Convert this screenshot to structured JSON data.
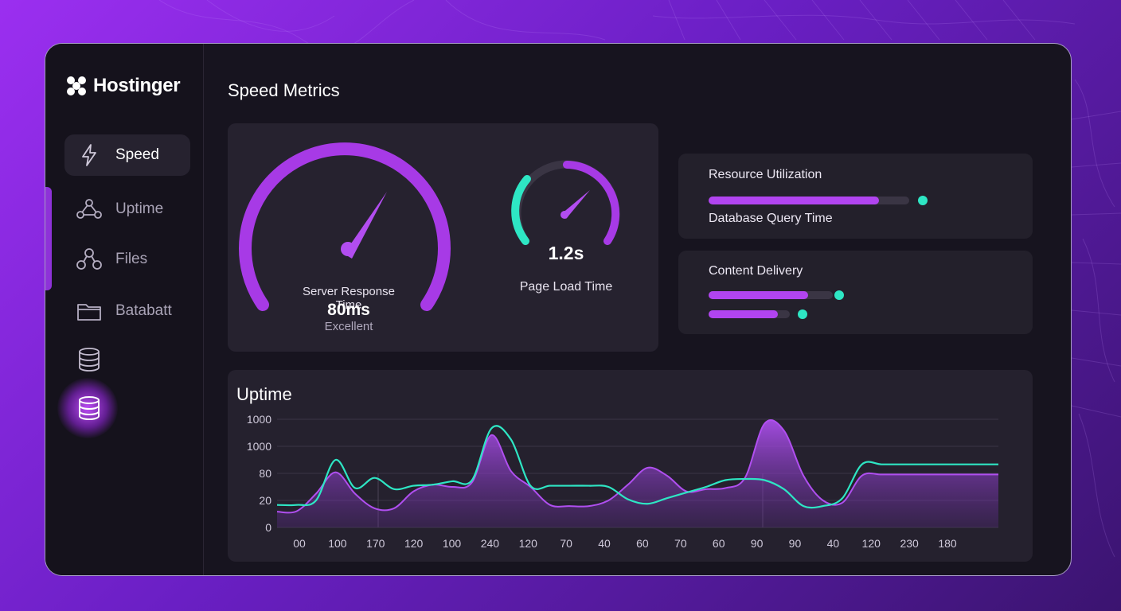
{
  "brand": {
    "name": "Hostinger",
    "logo_icon": "hostinger-logo-icon"
  },
  "sidebar": {
    "items": [
      {
        "label": "Speed",
        "icon": "lightning-icon",
        "active": true
      },
      {
        "label": "Uptime",
        "icon": "network-nodes-icon",
        "active": false
      },
      {
        "label": "Files",
        "icon": "nodes-icon",
        "active": false
      },
      {
        "label": "Batabatt",
        "icon": "folder-icon",
        "active": false
      },
      {
        "label": "",
        "icon": "database-icon",
        "active": false
      },
      {
        "label": "",
        "icon": "database-icon-glowing",
        "active": false
      }
    ]
  },
  "page": {
    "title": "Speed Metrics"
  },
  "gauges": {
    "server_response": {
      "label": "Server Response Time",
      "value": "80ms",
      "status": "Excellent",
      "fill_fraction": 0.9
    },
    "page_load": {
      "label": "Page Load Time",
      "value": "1.2s",
      "fill_fraction": 0.8
    }
  },
  "resource": {
    "title": "Resource Utilization",
    "subtitle": "Database Query Time",
    "bar_fraction": 0.85
  },
  "content_delivery": {
    "title": "Content Delivery",
    "bars": [
      0.8,
      0.85
    ]
  },
  "colors": {
    "accent_purple": "#b144f0",
    "accent_teal": "#2ee6c4",
    "panel": "#23202b"
  },
  "uptime": {
    "title": "Uptime"
  },
  "chart_data": {
    "type": "area",
    "title": "Uptime",
    "y_ticks": [
      "0",
      "20",
      "80",
      "1000",
      "1000"
    ],
    "x_ticks": [
      "00",
      "100",
      "170",
      "120",
      "100",
      "240",
      "120",
      "70",
      "40",
      "60",
      "70",
      "60",
      "90",
      "90",
      "40",
      "120",
      "230",
      "180"
    ],
    "y_tick_levels": [
      0,
      1,
      2,
      3,
      4
    ],
    "x": [
      0,
      0.5,
      1,
      1.5,
      2,
      2.5,
      3,
      3.5,
      4,
      4.5,
      5,
      5.5,
      6,
      6.5,
      7,
      7.5,
      8,
      8.5,
      9,
      9.5,
      10,
      10.5,
      11,
      11.5,
      12,
      12.5,
      13,
      13.5,
      14,
      14.5,
      15,
      15.5,
      16,
      16.5,
      17,
      17.5,
      18,
      18.5
    ],
    "series": [
      {
        "values": [
          0.7,
          0.72,
          1.5,
          2.45,
          1.5,
          0.85,
          0.85,
          1.6,
          1.9,
          1.8,
          2.0,
          4.1,
          2.5,
          1.8,
          1.0,
          0.95,
          0.95,
          1.2,
          1.9,
          2.65,
          2.3,
          1.6,
          1.7,
          1.75,
          2.2,
          4.6,
          4.3,
          2.3,
          1.2,
          1.1,
          2.3,
          2.35,
          2.35,
          2.35,
          2.35,
          2.35,
          2.35,
          2.35
        ]
      },
      {
        "values": [
          1.0,
          1.0,
          1.2,
          3.0,
          1.75,
          2.2,
          1.7,
          1.85,
          1.9,
          2.05,
          2.1,
          4.4,
          3.9,
          1.85,
          1.85,
          1.85,
          1.85,
          1.8,
          1.25,
          1.05,
          1.3,
          1.55,
          1.8,
          2.1,
          2.15,
          2.1,
          1.7,
          0.95,
          0.95,
          1.3,
          2.8,
          2.8,
          2.8,
          2.8,
          2.8,
          2.8,
          2.8,
          2.8
        ]
      }
    ],
    "ylim": [
      0,
      4.8
    ],
    "grid": true
  }
}
